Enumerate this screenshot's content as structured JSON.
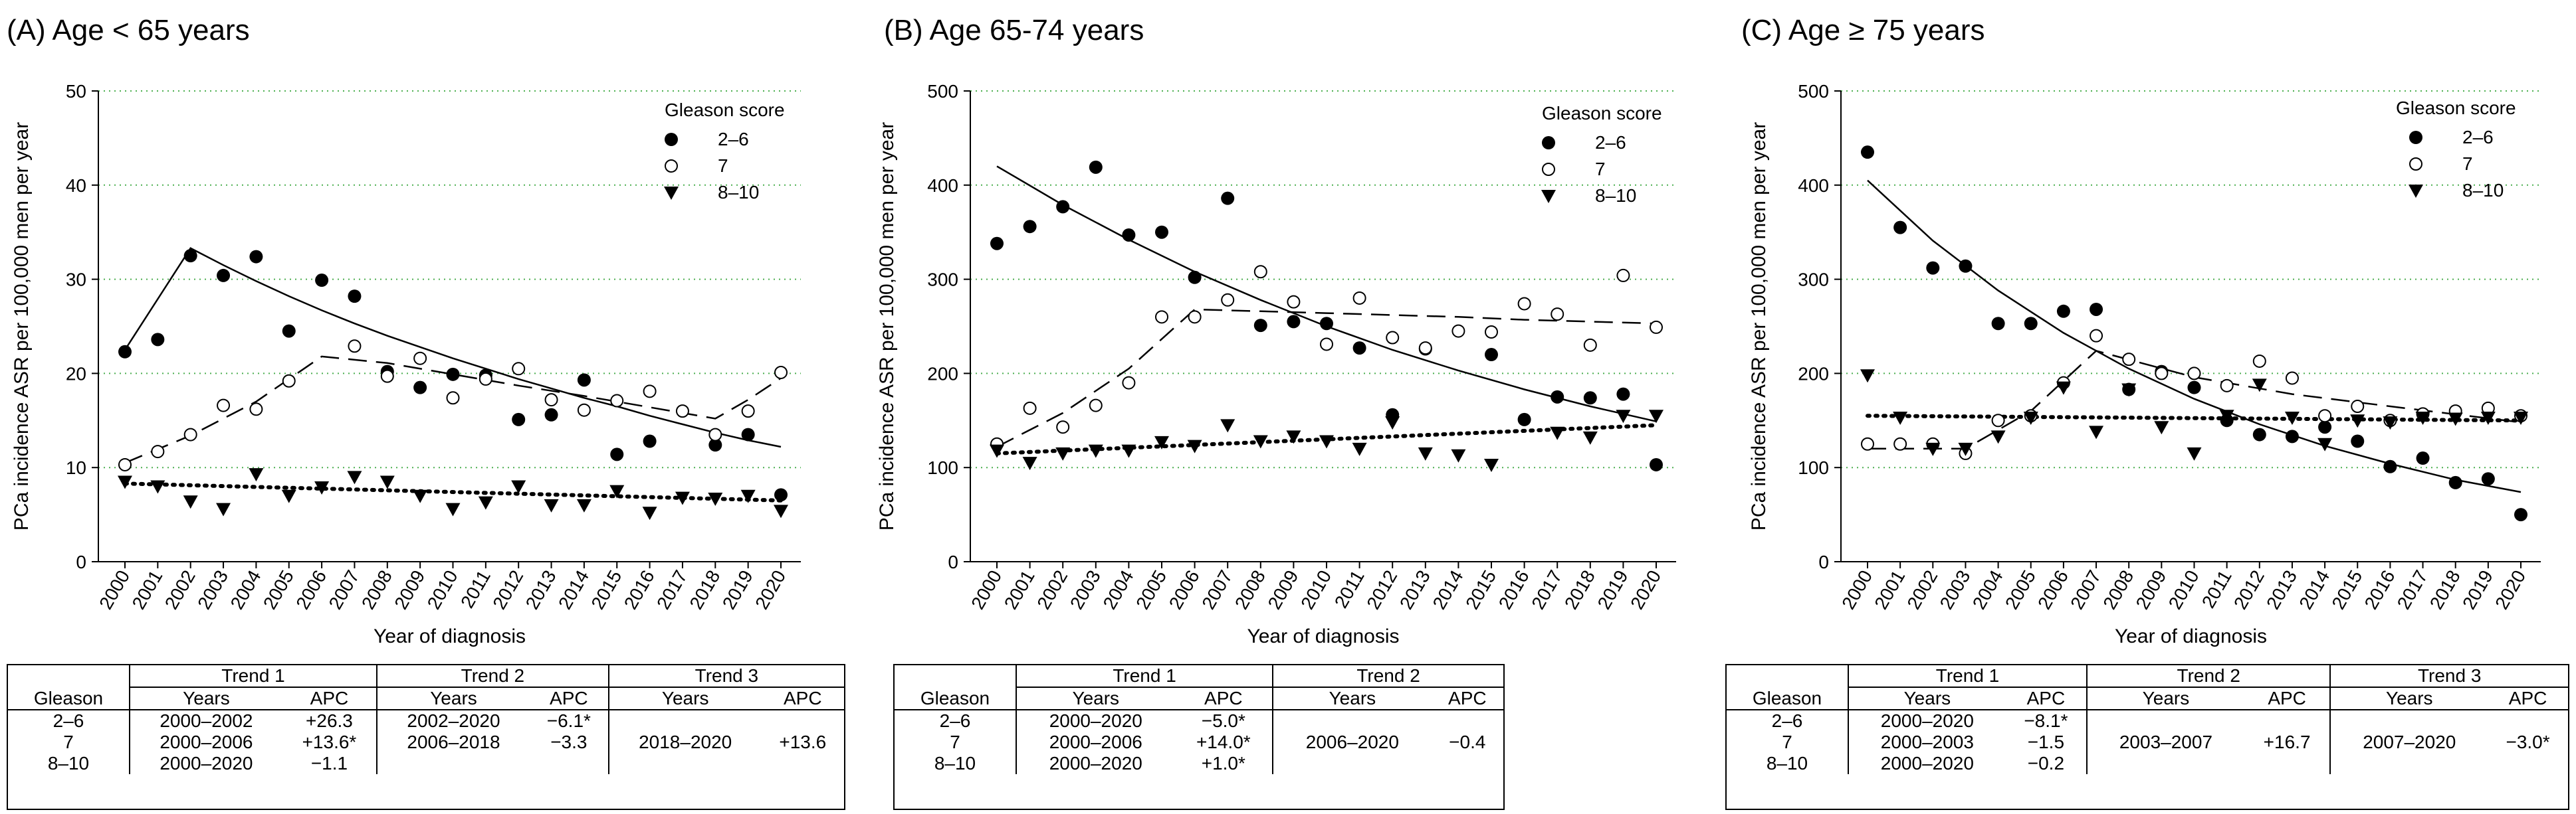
{
  "legend": {
    "title": "Gleason score",
    "labels": [
      "2–6",
      "7",
      "8–10"
    ]
  },
  "chart_data": [
    {
      "type": "scatter",
      "title": "(A) Age < 65 years",
      "xlabel": "Year of diagnosis",
      "ylabel": "PCa incidence ASR per 100,000 men per year",
      "categories": [
        "2000",
        "2001",
        "2002",
        "2003",
        "2004",
        "2005",
        "2006",
        "2007",
        "2008",
        "2009",
        "2010",
        "2011",
        "2012",
        "2013",
        "2014",
        "2015",
        "2016",
        "2017",
        "2018",
        "2019",
        "2020"
      ],
      "ylim": [
        0,
        50
      ],
      "yticks": [
        "0",
        "10",
        "20",
        "30",
        "40",
        "50"
      ],
      "series": [
        {
          "name": "2–6",
          "marker": "filled-circle",
          "values": [
            22.3,
            23.6,
            32.5,
            30.4,
            32.4,
            24.5,
            29.9,
            28.2,
            20.2,
            18.5,
            19.9,
            19.8,
            15.1,
            15.6,
            19.3,
            11.4,
            12.8,
            null,
            12.4,
            13.5,
            7.1
          ]
        },
        {
          "name": "7",
          "marker": "open-circle",
          "values": [
            10.3,
            11.7,
            13.5,
            16.6,
            16.2,
            19.2,
            null,
            22.9,
            19.7,
            21.6,
            17.4,
            19.4,
            20.5,
            17.2,
            16.1,
            17.1,
            18.1,
            16.0,
            13.5,
            16.0,
            20.1
          ]
        },
        {
          "name": "8–10",
          "marker": "filled-triangle",
          "values": [
            8.5,
            8.0,
            6.4,
            5.6,
            9.3,
            7.0,
            7.9,
            9.0,
            8.5,
            7.0,
            5.6,
            6.3,
            8.0,
            6.0,
            6.0,
            7.5,
            5.2,
            6.8,
            6.7,
            7.0,
            5.4
          ]
        }
      ],
      "fits": [
        {
          "name": "2–6",
          "style": "solid",
          "x": [
            2000,
            2002,
            2003,
            2004,
            2005,
            2006,
            2007,
            2008,
            2009,
            2010,
            2011,
            2012,
            2013,
            2014,
            2015,
            2016,
            2017,
            2018,
            2019,
            2020
          ],
          "values": [
            22.5,
            33.3,
            31.5,
            29.8,
            28.2,
            26.7,
            25.3,
            24.0,
            22.8,
            21.6,
            20.5,
            19.4,
            18.4,
            17.4,
            16.5,
            15.5,
            14.6,
            13.7,
            12.9,
            12.2
          ]
        },
        {
          "name": "7",
          "style": "dashed",
          "x": [
            2000,
            2002,
            2004,
            2006,
            2008,
            2010,
            2012,
            2014,
            2016,
            2018,
            2019,
            2020
          ],
          "values": [
            10.5,
            13.4,
            17.0,
            21.8,
            21.1,
            19.9,
            18.7,
            17.6,
            16.4,
            15.2,
            17.2,
            19.5
          ]
        },
        {
          "name": "8–10",
          "style": "dotted",
          "x": [
            2000,
            2020
          ],
          "values": [
            8.3,
            6.5
          ]
        }
      ]
    },
    {
      "type": "scatter",
      "title": "(B) Age 65-74 years",
      "xlabel": "Year of diagnosis",
      "ylabel": "PCa incidence ASR per 100,000 men per year",
      "categories": [
        "2000",
        "2001",
        "2002",
        "2003",
        "2004",
        "2005",
        "2006",
        "2007",
        "2008",
        "2009",
        "2010",
        "2011",
        "2012",
        "2013",
        "2014",
        "2015",
        "2016",
        "2017",
        "2018",
        "2019",
        "2020"
      ],
      "ylim": [
        0,
        500
      ],
      "yticks": [
        "0",
        "100",
        "200",
        "300",
        "400",
        "500"
      ],
      "series": [
        {
          "name": "2–6",
          "marker": "filled-circle",
          "values": [
            338,
            356,
            377,
            419,
            347,
            350,
            302,
            386,
            251,
            255,
            253,
            227,
            156,
            226,
            null,
            220,
            151,
            175,
            174,
            178,
            103
          ]
        },
        {
          "name": "7",
          "marker": "open-circle",
          "values": [
            125,
            163,
            143,
            166,
            190,
            260,
            260,
            278,
            308,
            276,
            231,
            280,
            238,
            227,
            245,
            244,
            274,
            263,
            230,
            304,
            249
          ]
        },
        {
          "name": "8–10",
          "marker": "filled-triangle",
          "values": [
            118,
            105,
            115,
            118,
            118,
            127,
            123,
            145,
            128,
            133,
            128,
            120,
            148,
            115,
            113,
            103,
            null,
            137,
            132,
            155,
            155
          ]
        }
      ],
      "fits": [
        {
          "name": "2–6",
          "style": "solid",
          "x": [
            2000,
            2002,
            2004,
            2006,
            2008,
            2010,
            2012,
            2014,
            2016,
            2018,
            2020
          ],
          "values": [
            420,
            379,
            342,
            308,
            278,
            250,
            225,
            203,
            183,
            165,
            149
          ]
        },
        {
          "name": "7",
          "style": "dashed",
          "x": [
            2000,
            2002,
            2004,
            2006,
            2008,
            2010,
            2012,
            2014,
            2016,
            2018,
            2020
          ],
          "values": [
            122,
            158,
            205,
            268,
            266,
            264,
            262,
            260,
            257,
            255,
            253
          ]
        },
        {
          "name": "8–10",
          "style": "dotted",
          "x": [
            2000,
            2020
          ],
          "values": [
            115,
            145
          ]
        }
      ]
    },
    {
      "type": "scatter",
      "title": "(C) Age ≥ 75 years",
      "xlabel": "Year of diagnosis",
      "ylabel": "PCa incidence ASR per 100,000 men per year",
      "categories": [
        "2000",
        "2001",
        "2002",
        "2003",
        "2004",
        "2005",
        "2006",
        "2007",
        "2008",
        "2009",
        "2010",
        "2011",
        "2012",
        "2013",
        "2014",
        "2015",
        "2016",
        "2017",
        "2018",
        "2019",
        "2020"
      ],
      "ylim": [
        0,
        500
      ],
      "yticks": [
        "0",
        "100",
        "200",
        "300",
        "400",
        "500"
      ],
      "series": [
        {
          "name": "2–6",
          "marker": "filled-circle",
          "values": [
            435,
            355,
            312,
            314,
            253,
            253,
            266,
            268,
            183,
            202,
            185,
            150,
            135,
            133,
            143,
            128,
            101,
            110,
            84,
            88,
            50
          ]
        },
        {
          "name": "7",
          "marker": "open-circle",
          "values": [
            125,
            125,
            125,
            115,
            150,
            155,
            190,
            240,
            215,
            200,
            200,
            187,
            213,
            195,
            155,
            165,
            150,
            157,
            160,
            163,
            155
          ]
        },
        {
          "name": "8–10",
          "marker": "filled-triangle",
          "values": [
            198,
            153,
            120,
            120,
            133,
            153,
            185,
            138,
            183,
            143,
            115,
            155,
            188,
            153,
            125,
            150,
            148,
            153,
            152,
            153,
            153
          ]
        }
      ],
      "fits": [
        {
          "name": "2–6",
          "style": "solid",
          "x": [
            2000,
            2002,
            2004,
            2006,
            2008,
            2010,
            2012,
            2014,
            2016,
            2018,
            2020
          ],
          "values": [
            405,
            341,
            288,
            243,
            205,
            173,
            146,
            123,
            104,
            87,
            74
          ]
        },
        {
          "name": "7",
          "style": "dashed",
          "x": [
            2000,
            2003,
            2005,
            2007,
            2010,
            2013,
            2016,
            2020
          ],
          "values": [
            120,
            120,
            160,
            224,
            196,
            178,
            165,
            148
          ]
        },
        {
          "name": "8–10",
          "style": "dotted",
          "x": [
            2000,
            2020
          ],
          "values": [
            155,
            150
          ]
        }
      ]
    }
  ],
  "tables": [
    {
      "trend_labels": [
        "Trend 1",
        "Trend 2",
        "Trend 3"
      ],
      "col_labels": [
        "Gleason",
        "Years",
        "APC",
        "Years",
        "APC",
        "Years",
        "APC"
      ],
      "rows": [
        [
          "2–6",
          "2000–2002",
          "+26.3",
          "2002–2020",
          "−6.1*",
          "",
          ""
        ],
        [
          "7",
          "2000–2006",
          "+13.6*",
          "2006–2018",
          "−3.3",
          "2018–2020",
          "+13.6"
        ],
        [
          "8–10",
          "2000–2020",
          "−1.1",
          "",
          "",
          "",
          ""
        ]
      ]
    },
    {
      "trend_labels": [
        "Trend 1",
        "Trend 2"
      ],
      "col_labels": [
        "Gleason",
        "Years",
        "APC",
        "Years",
        "APC"
      ],
      "rows": [
        [
          "2–6",
          "2000–2020",
          "−5.0*",
          "",
          ""
        ],
        [
          "7",
          "2000–2006",
          "+14.0*",
          "2006–2020",
          "−0.4"
        ],
        [
          "8–10",
          "2000–2020",
          "+1.0*",
          "",
          ""
        ]
      ]
    },
    {
      "trend_labels": [
        "Trend 1",
        "Trend 2",
        "Trend 3"
      ],
      "col_labels": [
        "Gleason",
        "Years",
        "APC",
        "Years",
        "APC",
        "Years",
        "APC"
      ],
      "rows": [
        [
          "2–6",
          "2000–2020",
          "−8.1*",
          "",
          "",
          "",
          ""
        ],
        [
          "7",
          "2000–2003",
          "−1.5",
          "2003–2007",
          "+16.7",
          "2007–2020",
          "−3.0*"
        ],
        [
          "8–10",
          "2000–2020",
          "−0.2",
          "",
          "",
          "",
          ""
        ]
      ]
    }
  ]
}
